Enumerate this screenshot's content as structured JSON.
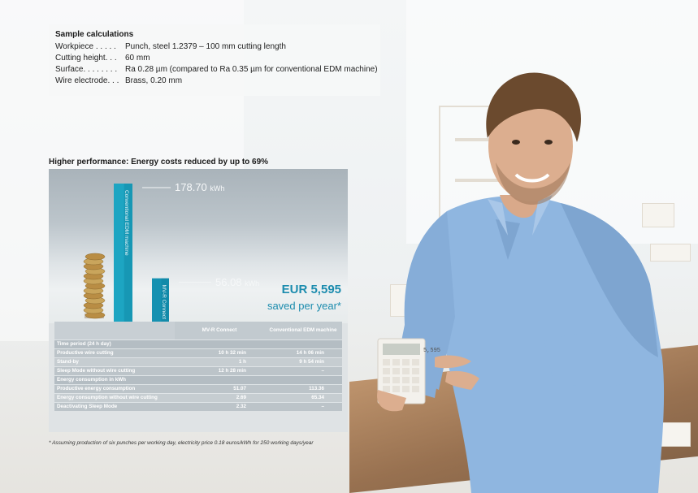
{
  "sample": {
    "title": "Sample calculations",
    "rows": [
      {
        "key": "Workpiece . . . . .",
        "value": "Punch, steel 1.2379 – 100 mm cutting length"
      },
      {
        "key": "Cutting height. . .",
        "value": "60 mm"
      },
      {
        "key": "Surface. . . . . . . .",
        "value": "Ra 0.28 µm (compared to Ra 0.35 µm for conventional EDM machine)"
      },
      {
        "key": "Wire electrode. . .",
        "value": "Brass, 0.20 mm"
      }
    ]
  },
  "section_title": "Higher performance: Energy costs reduced by up to 69%",
  "chart_data": {
    "type": "bar",
    "categories": [
      "Conventional EDM machine",
      "MV-R Connect"
    ],
    "values": [
      178.7,
      56.08
    ],
    "unit": "kWh",
    "value_labels": [
      "178.70",
      "56.08"
    ],
    "colors": [
      "#1da5c2",
      "#1591b1"
    ]
  },
  "savings": {
    "amount": "EUR 5,595",
    "text": "saved per year*"
  },
  "table": {
    "headers": [
      "",
      "MV-R Connect",
      "Conventional EDM machine"
    ],
    "rows": [
      {
        "label": "Time period (24 h day)",
        "a": "",
        "b": "",
        "group": true
      },
      {
        "label": "Productive wire cutting",
        "a": "10 h 32 min",
        "b": "14 h 06 min"
      },
      {
        "label": "Stand-by",
        "a": "1 h",
        "b": "9 h 54 min"
      },
      {
        "label": "Sleep Mode without wire cutting",
        "a": "12 h 28 min",
        "b": "–"
      },
      {
        "label": "Energy consumption in kWh",
        "a": "",
        "b": "",
        "group": true
      },
      {
        "label": "Productive energy consumption",
        "a": "51.07",
        "b": "113.36"
      },
      {
        "label": "Energy consumption without wire cutting",
        "a": "2.69",
        "b": "65.34"
      },
      {
        "label": "Deactivating Sleep Mode",
        "a": "2.32",
        "b": "–"
      }
    ]
  },
  "footnote": "* Assuming production of six punches per working day, electricity price 0.18 euros/kWh for 250 working days/year",
  "calculator_display": "5,595"
}
